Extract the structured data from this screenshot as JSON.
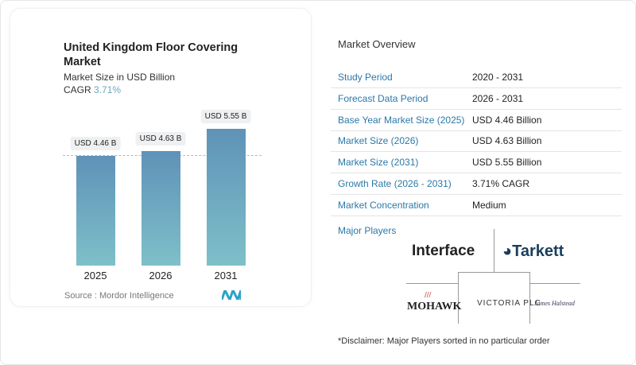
{
  "header": {
    "title": "United Kingdom Floor Covering Market",
    "subtitle": "Market Size in USD Billion",
    "cagr_label": "CAGR",
    "cagr_value": "3.71%"
  },
  "chart_data": {
    "type": "bar",
    "categories": [
      "2025",
      "2026",
      "2031"
    ],
    "values": [
      4.46,
      4.63,
      5.55
    ],
    "data_labels": [
      "USD 4.46 B",
      "USD 4.63 B",
      "USD 5.55 B"
    ],
    "title": "United Kingdom Floor Covering Market",
    "ylabel": "Market Size in USD Billion",
    "grid": false,
    "colors": {
      "bar_top": "#5f92b8",
      "bar_bottom": "#7ec0c9"
    }
  },
  "source": "Source :  Mordor Intelligence",
  "overview": {
    "title": "Market Overview",
    "rows": [
      {
        "k": "Study Period",
        "v": "2020 - 2031"
      },
      {
        "k": "Forecast Data Period",
        "v": "2026 - 2031"
      },
      {
        "k": "Base Year Market Size (2025)",
        "v": "USD 4.46 Billion"
      },
      {
        "k": "Market Size (2026)",
        "v": "USD 4.63 Billion"
      },
      {
        "k": "Market Size (2031)",
        "v": "USD 5.55 Billion"
      },
      {
        "k": "Growth Rate (2026 - 2031)",
        "v": "3.71% CAGR"
      },
      {
        "k": "Market Concentration",
        "v": "Medium"
      }
    ]
  },
  "players": {
    "title": "Major Players",
    "logos": [
      "Interface",
      "Tarkett",
      "MOHAWK",
      "VICTORIA PLC",
      "James Halstead"
    ]
  },
  "disclaimer": "*Disclaimer: Major Players sorted in no particular order"
}
